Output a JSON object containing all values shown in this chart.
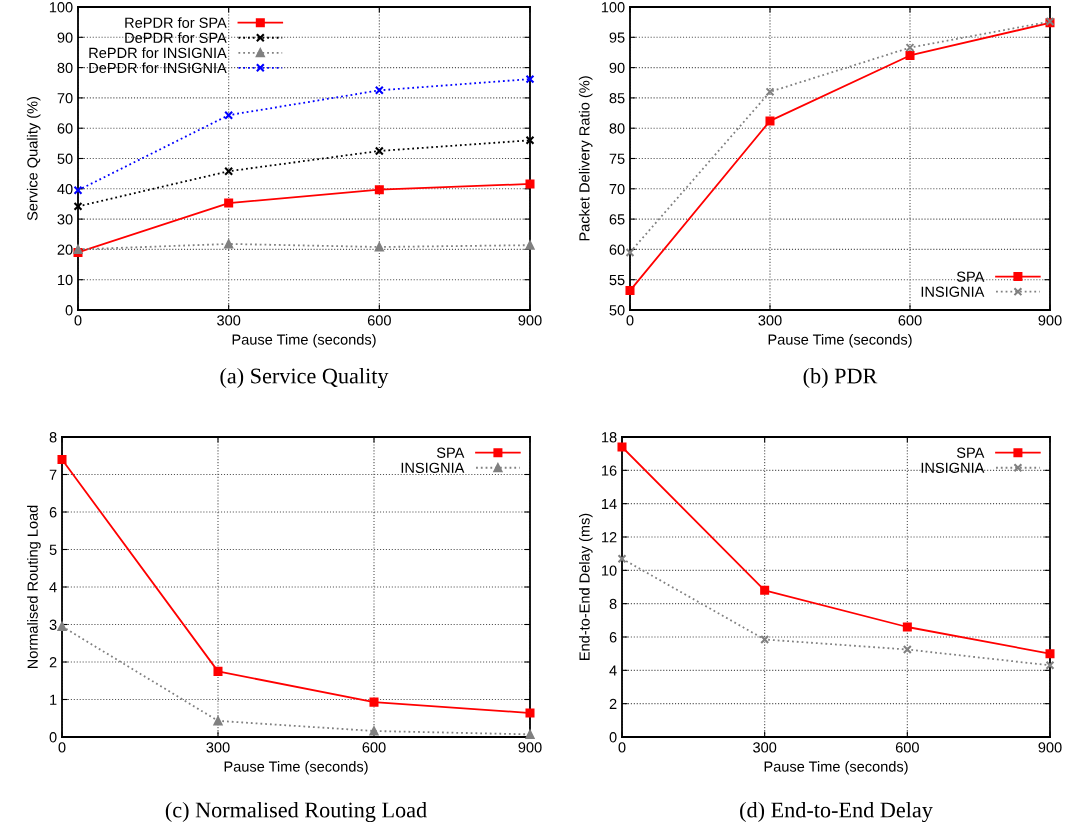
{
  "chart_data": [
    {
      "type": "line",
      "title": "(a) Service Quality",
      "xlabel": "Pause Time (seconds)",
      "ylabel": "Service Quality (%)",
      "x": [
        0,
        300,
        600,
        900
      ],
      "xlim": [
        0,
        900
      ],
      "xticks": [
        0,
        300,
        600,
        900
      ],
      "ylim": [
        0,
        100
      ],
      "yticks": [
        0,
        10,
        20,
        30,
        40,
        50,
        60,
        70,
        80,
        90,
        100
      ],
      "grid": true,
      "legend": "top left",
      "series": [
        {
          "name": "RePDR for SPA",
          "color": "#ff0000",
          "marker": "square",
          "line_style": "solid",
          "values": [
            19,
            35.3,
            39.7,
            41.6
          ]
        },
        {
          "name": "DePDR for SPA",
          "color": "#000000",
          "marker": "cross",
          "line_style": "dotted",
          "values": [
            34.2,
            45.8,
            52.5,
            56
          ]
        },
        {
          "name": "RePDR for INSIGNIA",
          "color": "#808080",
          "marker": "triangle",
          "line_style": "dotted",
          "values": [
            20,
            21.8,
            20.8,
            21.4
          ]
        },
        {
          "name": "DePDR for INSIGNIA",
          "color": "#0000ff",
          "marker": "cross",
          "line_style": "dotted",
          "values": [
            39.5,
            64.3,
            72.5,
            76.2
          ]
        }
      ]
    },
    {
      "type": "line",
      "title": "(b) PDR",
      "xlabel": "Pause Time (seconds)",
      "ylabel": "Packet Delivery Ratio (%)",
      "x": [
        0,
        300,
        600,
        900
      ],
      "xlim": [
        0,
        900
      ],
      "xticks": [
        0,
        300,
        600,
        900
      ],
      "ylim": [
        50,
        100
      ],
      "yticks": [
        50,
        55,
        60,
        65,
        70,
        75,
        80,
        85,
        90,
        95,
        100
      ],
      "grid": true,
      "legend": "bottom right",
      "series": [
        {
          "name": "SPA",
          "color": "#ff0000",
          "marker": "square",
          "line_style": "solid",
          "values": [
            53.2,
            81.2,
            92,
            97.4
          ]
        },
        {
          "name": "INSIGNIA",
          "color": "#808080",
          "marker": "cross",
          "line_style": "dotted",
          "values": [
            59.5,
            86,
            93.3,
            97.6
          ]
        }
      ]
    },
    {
      "type": "line",
      "title": "(c) Normalised Routing Load",
      "xlabel": "Pause Time (seconds)",
      "ylabel": "Normalised Routing Load",
      "x": [
        0,
        300,
        600,
        900
      ],
      "xlim": [
        0,
        900
      ],
      "xticks": [
        0,
        300,
        600,
        900
      ],
      "ylim": [
        0,
        8
      ],
      "yticks": [
        0,
        1,
        2,
        3,
        4,
        5,
        6,
        7,
        8
      ],
      "grid": true,
      "legend": "top right",
      "series": [
        {
          "name": "SPA",
          "color": "#ff0000",
          "marker": "square",
          "line_style": "solid",
          "values": [
            7.4,
            1.75,
            0.93,
            0.64
          ]
        },
        {
          "name": "INSIGNIA",
          "color": "#808080",
          "marker": "triangle",
          "line_style": "dotted",
          "values": [
            2.95,
            0.43,
            0.16,
            0.07
          ]
        }
      ]
    },
    {
      "type": "line",
      "title": "(d) End-to-End Delay",
      "xlabel": "Pause Time (seconds)",
      "ylabel": "End-to-End Delay (ms)",
      "x": [
        0,
        300,
        600,
        900
      ],
      "xlim": [
        0,
        900
      ],
      "xticks": [
        0,
        300,
        600,
        900
      ],
      "ylim": [
        0,
        18
      ],
      "yticks": [
        0,
        2,
        4,
        6,
        8,
        10,
        12,
        14,
        16,
        18
      ],
      "grid": true,
      "legend": "top right",
      "series": [
        {
          "name": "SPA",
          "color": "#ff0000",
          "marker": "square",
          "line_style": "solid",
          "values": [
            17.4,
            8.8,
            6.6,
            5.0
          ]
        },
        {
          "name": "INSIGNIA",
          "color": "#808080",
          "marker": "cross",
          "line_style": "dotted",
          "values": [
            10.7,
            5.85,
            5.25,
            4.3
          ]
        }
      ]
    }
  ]
}
